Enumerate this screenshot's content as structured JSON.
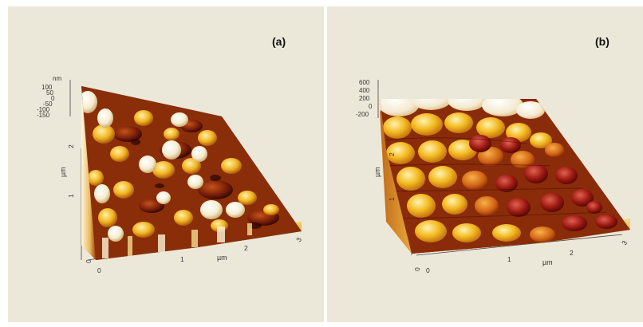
{
  "panels": [
    {
      "label": "(a)",
      "z_unit": "nm",
      "z_ticks": [
        "100",
        "50",
        "0",
        "-50",
        "-100",
        "-150"
      ],
      "x_unit": "µm",
      "y_unit": "µm",
      "x_ticks": [
        "0",
        "1",
        "2",
        "3"
      ],
      "y_ticks": [
        "0",
        "1",
        "2"
      ],
      "origin_label": "0",
      "colors": {
        "dark": "#3a0a05",
        "mid": "#b8400c",
        "bright": "#f2c31a",
        "peak": "#fffbe6"
      }
    },
    {
      "label": "(b)",
      "z_unit": "nm",
      "z_ticks": [
        "600",
        "400",
        "200",
        "0",
        "-200"
      ],
      "x_unit": "µm",
      "y_unit": "µm",
      "x_ticks": [
        "0",
        "1",
        "2",
        "3"
      ],
      "y_ticks": [
        "0",
        "1",
        "2"
      ],
      "origin_label": "0",
      "colors": {
        "dark": "#5a0a0a",
        "mid": "#c0390c",
        "bright": "#f0b81c",
        "peak": "#fffaf0"
      }
    }
  ]
}
